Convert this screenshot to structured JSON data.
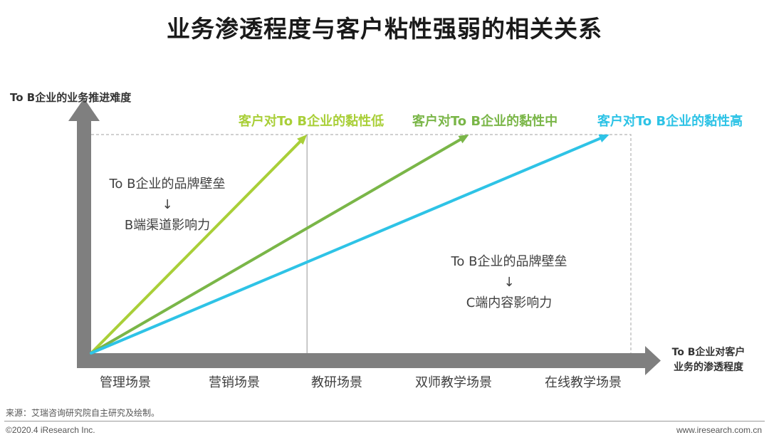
{
  "title": "业务渗透程度与客户粘性强弱的相关关系",
  "source_note": "来源：艾瑞咨询研究院自主研究及绘制。",
  "copyright": "©2020.4 iResearch Inc.",
  "website": "www.iresearch.com.cn",
  "chart_data": {
    "type": "line",
    "ylabel": "To B企业的业务推进难度",
    "xlabel_lines": [
      "To B企业对客户",
      "业务的渗透程度"
    ],
    "categories": [
      "管理场景",
      "营销场景",
      "教研场景",
      "双师教学场景",
      "在线教学场景"
    ],
    "series": [
      {
        "name": "客户对To B企业的黏性低",
        "color": "#a9cf38",
        "points": [
          [
            0,
            0
          ],
          [
            2,
            1.0
          ]
        ]
      },
      {
        "name": "客户对To B企业的黏性中",
        "color": "#7ab648",
        "points": [
          [
            0,
            0
          ],
          [
            3.5,
            1.0
          ]
        ]
      },
      {
        "name": "客户对To B企业的黏性高",
        "color": "#2ec3e6",
        "points": [
          [
            0,
            0
          ],
          [
            4.8,
            1.0
          ]
        ]
      }
    ],
    "annotations": [
      {
        "lines": [
          "To B企业的品牌壁垒",
          "↓",
          "B端渠道影响力"
        ]
      },
      {
        "lines": [
          "To B企业的品牌壁垒",
          "↓",
          "C端内容影响力"
        ]
      }
    ],
    "x_range": [
      0,
      5
    ],
    "y_range": [
      0,
      1
    ],
    "divider_at": 2,
    "grid": false,
    "axis_color": "#7f7f7f"
  }
}
